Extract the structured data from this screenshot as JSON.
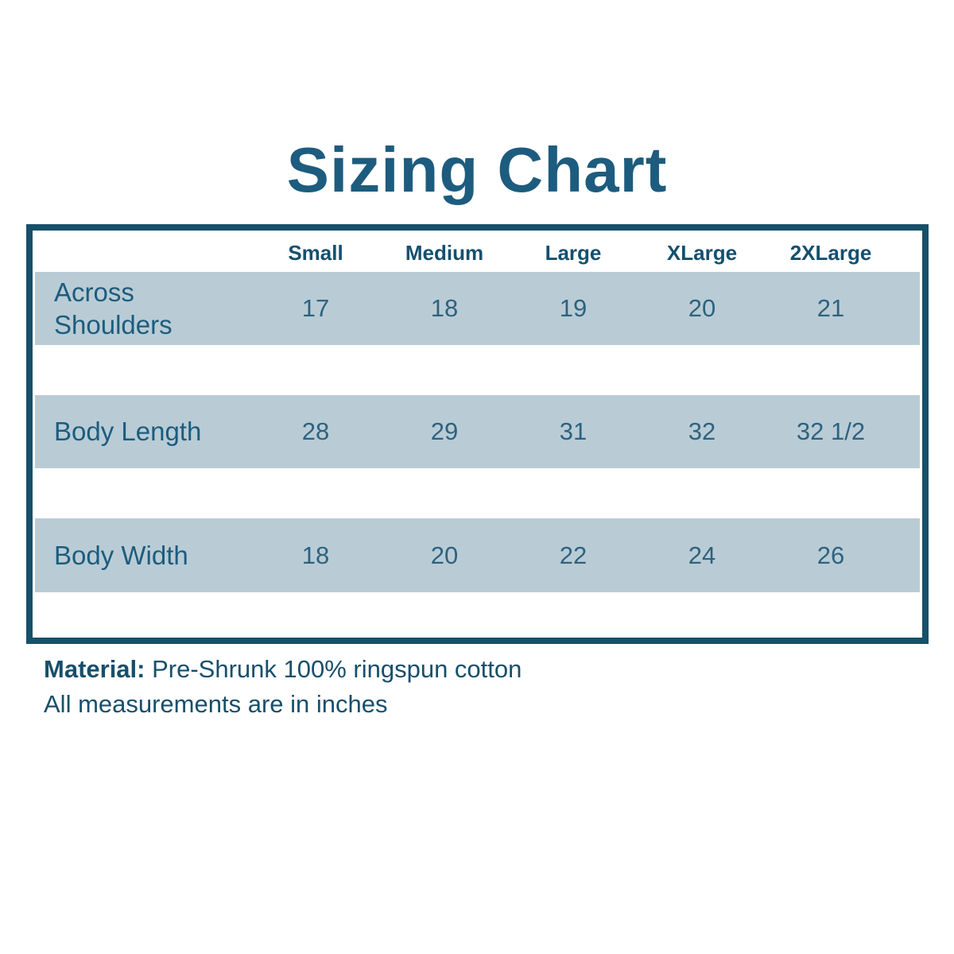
{
  "page": {
    "title": "Sizing Chart"
  },
  "chart_data": {
    "type": "table",
    "title": "Sizing Chart",
    "columns": [
      "",
      "Small",
      "Medium",
      "Large",
      "XLarge",
      "2XLarge"
    ],
    "rows": [
      {
        "label": "Across Shoulders",
        "values": [
          "17",
          "18",
          "19",
          "20",
          "21"
        ]
      },
      {
        "label": "Body Length",
        "values": [
          "28",
          "29",
          "31",
          "32",
          "32 1/2"
        ]
      },
      {
        "label": "Body Width",
        "values": [
          "18",
          "20",
          "22",
          "24",
          "26"
        ]
      }
    ],
    "layout": {
      "banded_rows": true,
      "band_color": "#b9ccd5",
      "border_color": "#17506a",
      "text_color": "#1d5c7e"
    }
  },
  "notes": {
    "material_label": "Material:",
    "material_value": "Pre-Shrunk 100% ringspun cotton",
    "measurements_note": "All measurements are in inches"
  },
  "colors": {
    "title": "#1d5c7e",
    "table_border": "#17506a",
    "row_band": "#b9ccd5",
    "header_text": "#14506f",
    "value_text": "#2e6280",
    "background": "#ffffff"
  }
}
